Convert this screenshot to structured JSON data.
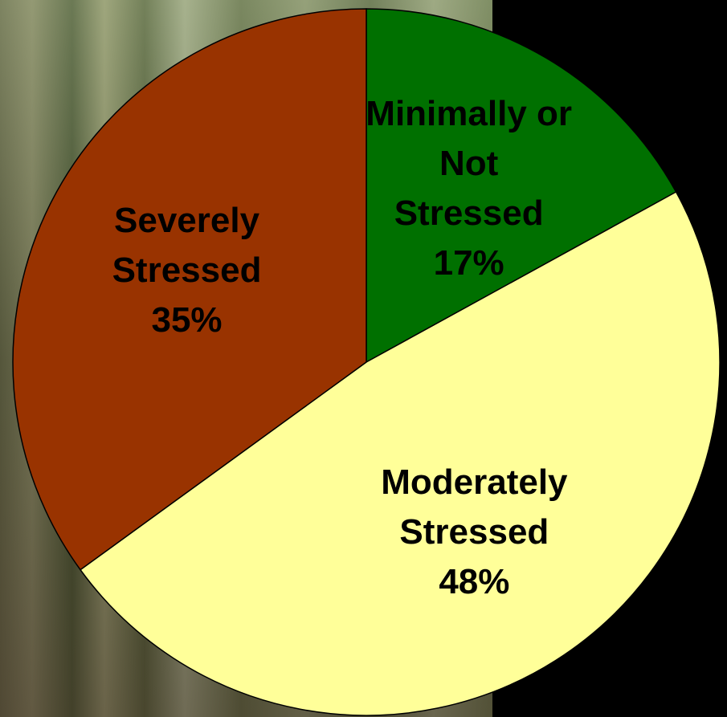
{
  "chart_data": {
    "type": "pie",
    "categories": [
      "Minimally or Not Stressed",
      "Moderately Stressed",
      "Severely Stressed"
    ],
    "values": [
      17,
      48,
      35
    ],
    "value_labels": [
      "17%",
      "48%",
      "35%"
    ],
    "colors": [
      "#007000",
      "#ffff99",
      "#993300"
    ]
  }
}
